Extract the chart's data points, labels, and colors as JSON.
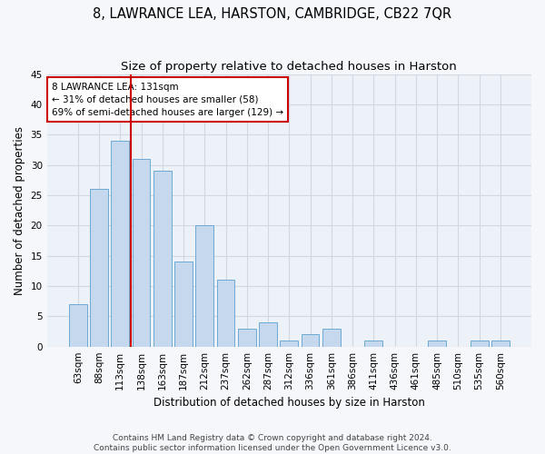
{
  "title": "8, LAWRANCE LEA, HARSTON, CAMBRIDGE, CB22 7QR",
  "subtitle": "Size of property relative to detached houses in Harston",
  "xlabel": "Distribution of detached houses by size in Harston",
  "ylabel": "Number of detached properties",
  "categories": [
    "63sqm",
    "88sqm",
    "113sqm",
    "138sqm",
    "163sqm",
    "187sqm",
    "212sqm",
    "237sqm",
    "262sqm",
    "287sqm",
    "312sqm",
    "336sqm",
    "361sqm",
    "386sqm",
    "411sqm",
    "436sqm",
    "461sqm",
    "485sqm",
    "510sqm",
    "535sqm",
    "560sqm"
  ],
  "values": [
    7,
    26,
    34,
    31,
    29,
    14,
    20,
    11,
    3,
    4,
    1,
    2,
    3,
    0,
    1,
    0,
    0,
    1,
    0,
    1,
    1
  ],
  "bar_color": "#c5d8ed",
  "bar_edgecolor": "#6aaad4",
  "vline_color": "#cc0000",
  "annotation_text": "8 LAWRANCE LEA: 131sqm\n← 31% of detached houses are smaller (58)\n69% of semi-detached houses are larger (129) →",
  "annotation_box_color": "#ffffff",
  "annotation_box_edgecolor": "#cc0000",
  "ylim": [
    0,
    45
  ],
  "yticks": [
    0,
    5,
    10,
    15,
    20,
    25,
    30,
    35,
    40,
    45
  ],
  "grid_color": "#d0d8e4",
  "background_color": "#edf2f9",
  "fig_background_color": "#f5f7fb",
  "footer_line1": "Contains HM Land Registry data © Crown copyright and database right 2024.",
  "footer_line2": "Contains public sector information licensed under the Open Government Licence v3.0.",
  "title_fontsize": 10.5,
  "subtitle_fontsize": 9.5,
  "axis_label_fontsize": 8.5,
  "tick_fontsize": 7.5,
  "annotation_fontsize": 7.5,
  "footer_fontsize": 6.5
}
